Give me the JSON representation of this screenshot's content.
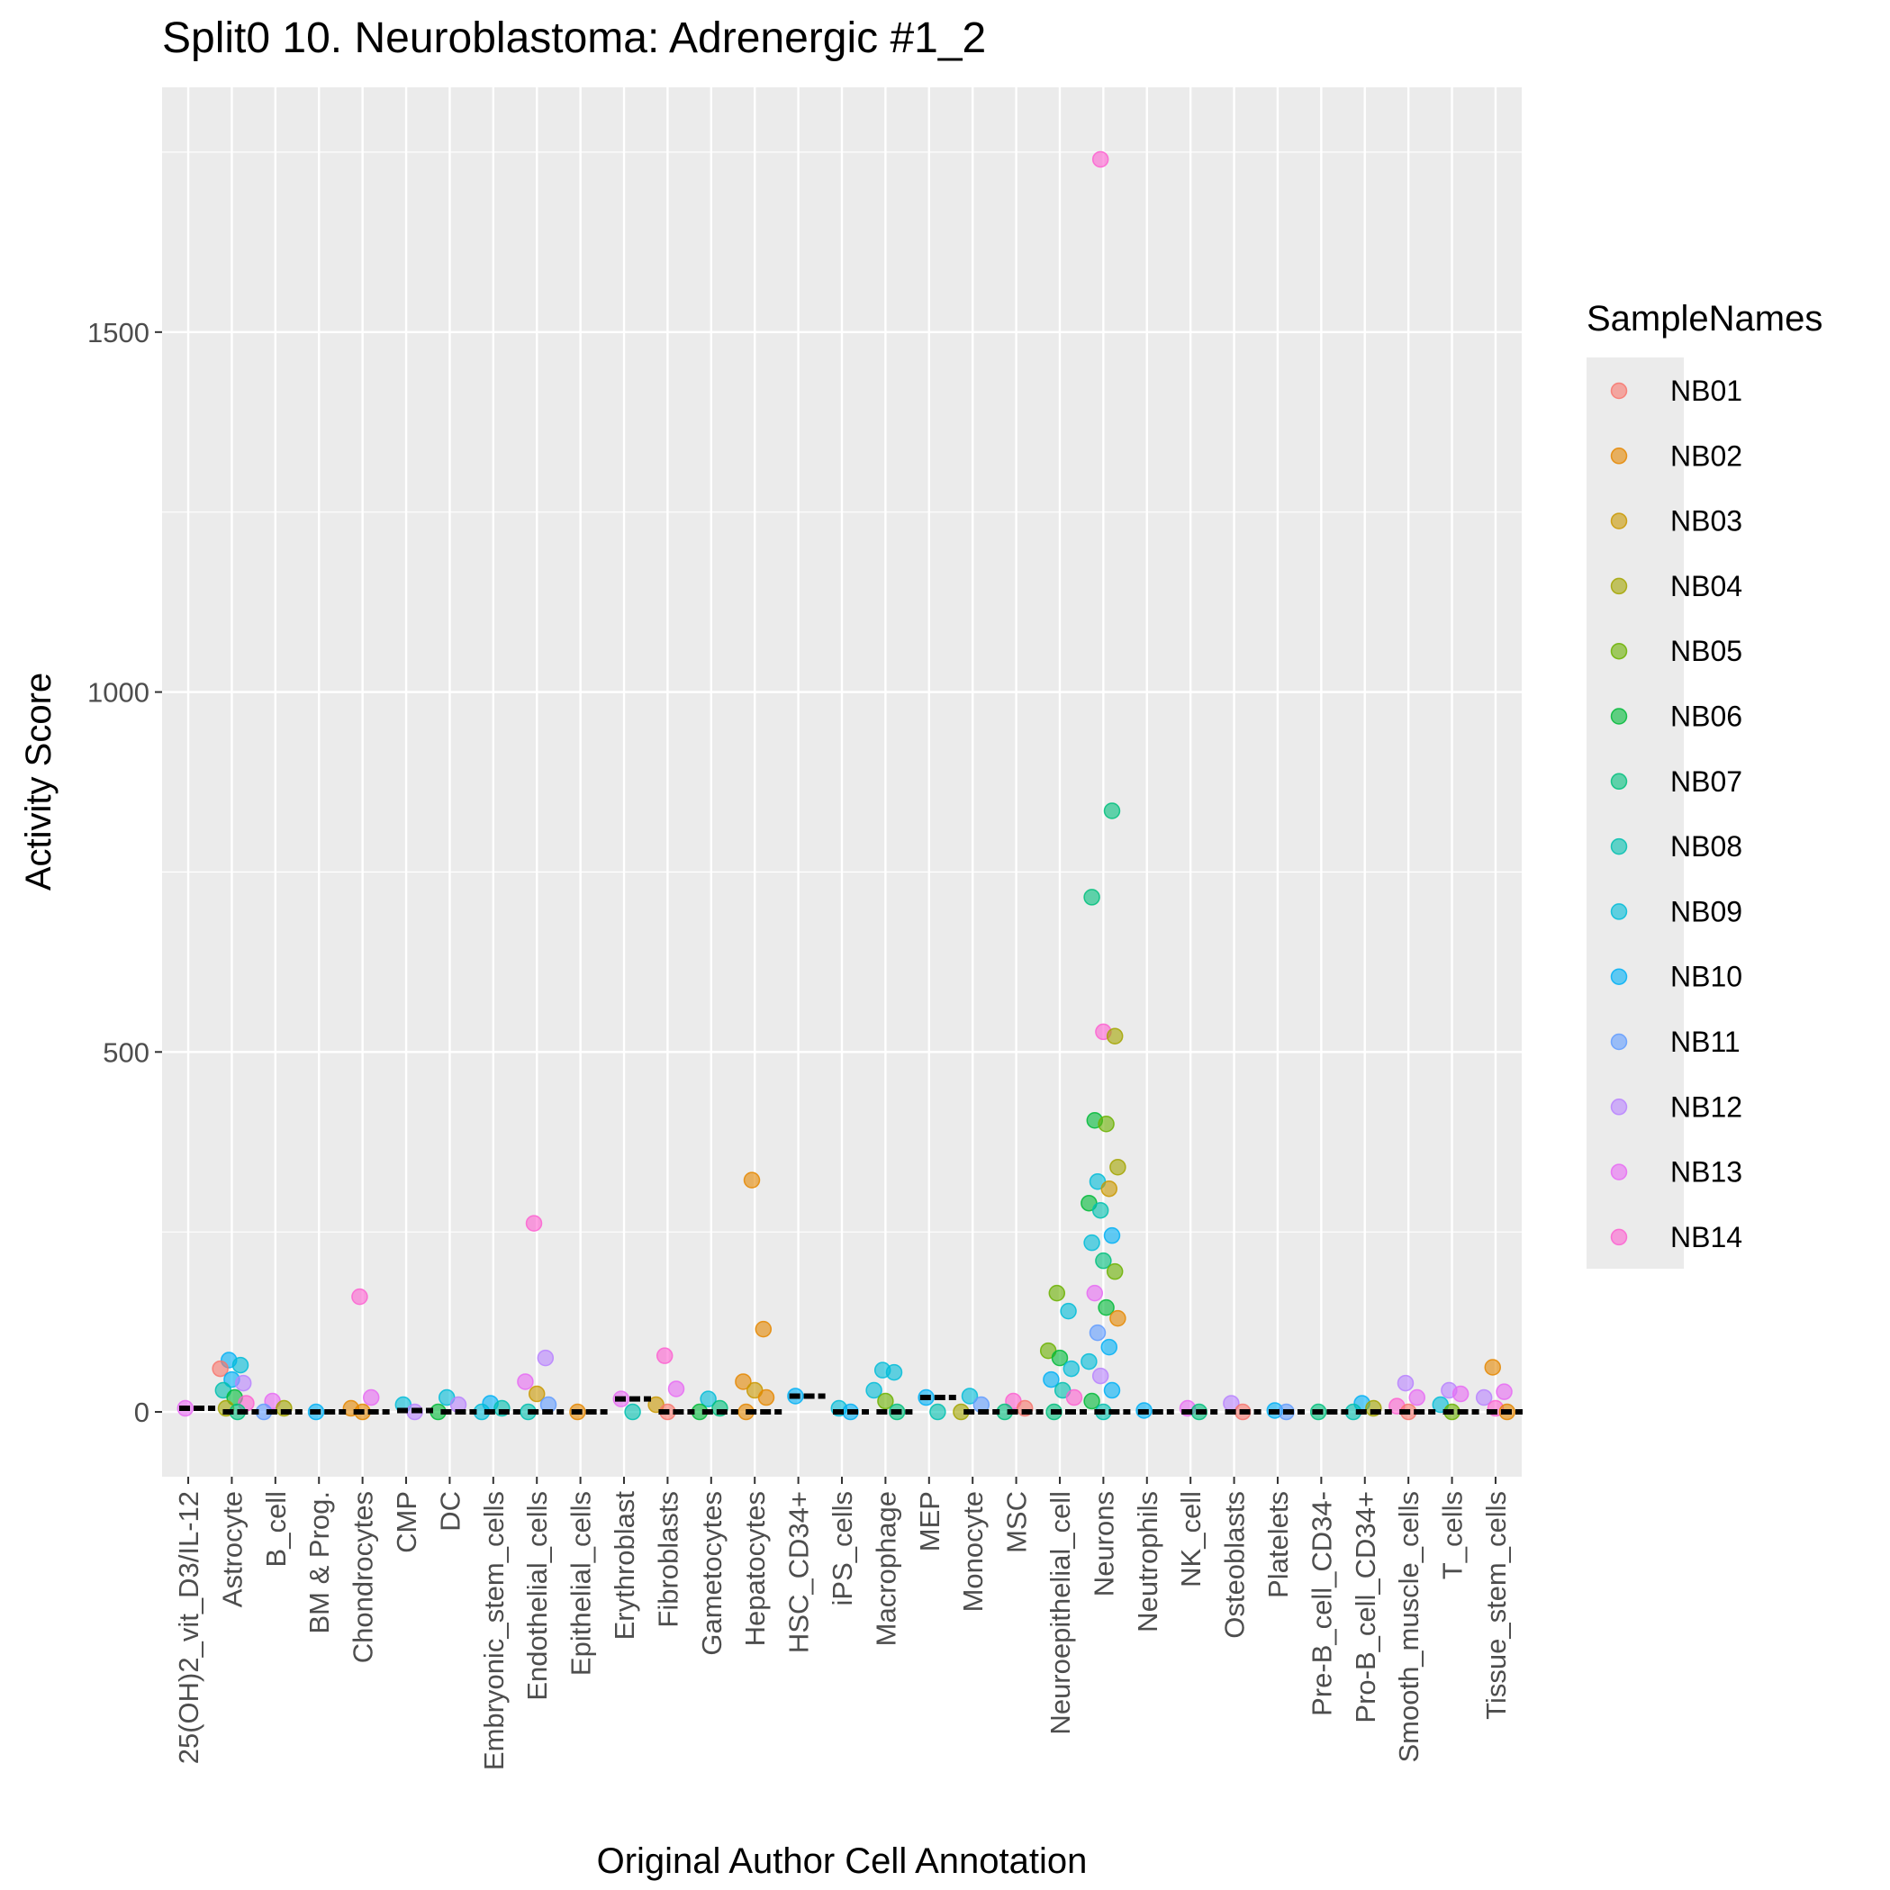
{
  "chart_data": {
    "type": "scatter",
    "title": "Split0 10. Neuroblastoma: Adrenergic #1_2",
    "xlabel": "Original Author Cell Annotation",
    "ylabel": "Activity Score",
    "ylim": [
      -90,
      1840
    ],
    "yticks": [
      0,
      500,
      1000,
      1500
    ],
    "grid": true,
    "legend": {
      "title": "SampleNames",
      "position": "right"
    },
    "categories": [
      "25(OH)2_vit_D3/IL-12",
      "Astrocyte",
      "B_cell",
      "BM & Prog.",
      "Chondrocytes",
      "CMP",
      "DC",
      "Embryonic_stem_cells",
      "Endothelial_cells",
      "Epithelial_cells",
      "Erythroblast",
      "Fibroblasts",
      "Gametocytes",
      "Hepatocytes",
      "HSC_CD34+",
      "iPS_cells",
      "Macrophage",
      "MEP",
      "Monocyte",
      "MSC",
      "Neuroepithelial_cell",
      "Neurons",
      "Neutrophils",
      "NK_cell",
      "Osteoblasts",
      "Platelets",
      "Pre-B_cell_CD34-",
      "Pro-B_cell_CD34+",
      "Smooth_muscle_cells",
      "T_cells",
      "Tissue_stem_cells"
    ],
    "series": [
      {
        "name": "NB01",
        "color": "#F8766D"
      },
      {
        "name": "NB02",
        "color": "#E58700"
      },
      {
        "name": "NB03",
        "color": "#C99800"
      },
      {
        "name": "NB04",
        "color": "#A3A500"
      },
      {
        "name": "NB05",
        "color": "#6BB100"
      },
      {
        "name": "NB06",
        "color": "#00BA38"
      },
      {
        "name": "NB07",
        "color": "#00BF7D"
      },
      {
        "name": "NB08",
        "color": "#00C0AF"
      },
      {
        "name": "NB09",
        "color": "#00BCD8"
      },
      {
        "name": "NB10",
        "color": "#00B0F6"
      },
      {
        "name": "NB11",
        "color": "#619CFF"
      },
      {
        "name": "NB12",
        "color": "#B983FF"
      },
      {
        "name": "NB13",
        "color": "#E76BF3"
      },
      {
        "name": "NB14",
        "color": "#FD61D1"
      }
    ],
    "points": [
      {
        "category": "25(OH)2_vit_D3/IL-12",
        "series": "NB13",
        "y": 5
      },
      {
        "category": "Astrocyte",
        "series": "NB10",
        "y": 72
      },
      {
        "category": "Astrocyte",
        "series": "NB09",
        "y": 65
      },
      {
        "category": "Astrocyte",
        "series": "NB01",
        "y": 60
      },
      {
        "category": "Astrocyte",
        "series": "NB10",
        "y": 45
      },
      {
        "category": "Astrocyte",
        "series": "NB12",
        "y": 40
      },
      {
        "category": "Astrocyte",
        "series": "NB08",
        "y": 30
      },
      {
        "category": "Astrocyte",
        "series": "NB06",
        "y": 20
      },
      {
        "category": "Astrocyte",
        "series": "NB14",
        "y": 12
      },
      {
        "category": "Astrocyte",
        "series": "NB04",
        "y": 5
      },
      {
        "category": "Astrocyte",
        "series": "NB07",
        "y": 0
      },
      {
        "category": "B_cell",
        "series": "NB13",
        "y": 15
      },
      {
        "category": "B_cell",
        "series": "NB04",
        "y": 5
      },
      {
        "category": "B_cell",
        "series": "NB11",
        "y": 0
      },
      {
        "category": "BM & Prog.",
        "series": "NB10",
        "y": 0
      },
      {
        "category": "Chondrocytes",
        "series": "NB14",
        "y": 160
      },
      {
        "category": "Chondrocytes",
        "series": "NB13",
        "y": 20
      },
      {
        "category": "Chondrocytes",
        "series": "NB02",
        "y": 5
      },
      {
        "category": "Chondrocytes",
        "series": "NB02",
        "y": 0
      },
      {
        "category": "CMP",
        "series": "NB09",
        "y": 10
      },
      {
        "category": "CMP",
        "series": "NB12",
        "y": 0
      },
      {
        "category": "DC",
        "series": "NB09",
        "y": 20
      },
      {
        "category": "DC",
        "series": "NB12",
        "y": 10
      },
      {
        "category": "DC",
        "series": "NB06",
        "y": 0
      },
      {
        "category": "Embryonic_stem_cells",
        "series": "NB10",
        "y": 12
      },
      {
        "category": "Embryonic_stem_cells",
        "series": "NB08",
        "y": 5
      },
      {
        "category": "Embryonic_stem_cells",
        "series": "NB09",
        "y": 0
      },
      {
        "category": "Endothelial_cells",
        "series": "NB14",
        "y": 262
      },
      {
        "category": "Endothelial_cells",
        "series": "NB12",
        "y": 75
      },
      {
        "category": "Endothelial_cells",
        "series": "NB13",
        "y": 42
      },
      {
        "category": "Endothelial_cells",
        "series": "NB03",
        "y": 25
      },
      {
        "category": "Endothelial_cells",
        "series": "NB11",
        "y": 10
      },
      {
        "category": "Endothelial_cells",
        "series": "NB08",
        "y": 0
      },
      {
        "category": "Epithelial_cells",
        "series": "NB02",
        "y": 0
      },
      {
        "category": "Erythroblast",
        "series": "NB13",
        "y": 18
      },
      {
        "category": "Erythroblast",
        "series": "NB08",
        "y": 0
      },
      {
        "category": "Fibroblasts",
        "series": "NB14",
        "y": 78
      },
      {
        "category": "Fibroblasts",
        "series": "NB13",
        "y": 32
      },
      {
        "category": "Fibroblasts",
        "series": "NB03",
        "y": 10
      },
      {
        "category": "Fibroblasts",
        "series": "NB01",
        "y": 0
      },
      {
        "category": "Gametocytes",
        "series": "NB09",
        "y": 18
      },
      {
        "category": "Gametocytes",
        "series": "NB07",
        "y": 5
      },
      {
        "category": "Gametocytes",
        "series": "NB06",
        "y": 0
      },
      {
        "category": "Hepatocytes",
        "series": "NB02",
        "y": 322
      },
      {
        "category": "Hepatocytes",
        "series": "NB02",
        "y": 115
      },
      {
        "category": "Hepatocytes",
        "series": "NB02",
        "y": 42
      },
      {
        "category": "Hepatocytes",
        "series": "NB03",
        "y": 30
      },
      {
        "category": "Hepatocytes",
        "series": "NB02",
        "y": 20
      },
      {
        "category": "Hepatocytes",
        "series": "NB02",
        "y": 0
      },
      {
        "category": "HSC_CD34+",
        "series": "NB10",
        "y": 22
      },
      {
        "category": "iPS_cells",
        "series": "NB09",
        "y": 5
      },
      {
        "category": "iPS_cells",
        "series": "NB10",
        "y": 0
      },
      {
        "category": "Macrophage",
        "series": "NB09",
        "y": 58
      },
      {
        "category": "Macrophage",
        "series": "NB09",
        "y": 55
      },
      {
        "category": "Macrophage",
        "series": "NB09",
        "y": 30
      },
      {
        "category": "Macrophage",
        "series": "NB05",
        "y": 15
      },
      {
        "category": "Macrophage",
        "series": "NB07",
        "y": 0
      },
      {
        "category": "MEP",
        "series": "NB10",
        "y": 20
      },
      {
        "category": "MEP",
        "series": "NB08",
        "y": 0
      },
      {
        "category": "Monocyte",
        "series": "NB09",
        "y": 22
      },
      {
        "category": "Monocyte",
        "series": "NB11",
        "y": 10
      },
      {
        "category": "Monocyte",
        "series": "NB04",
        "y": 0
      },
      {
        "category": "MSC",
        "series": "NB14",
        "y": 15
      },
      {
        "category": "MSC",
        "series": "NB01",
        "y": 5
      },
      {
        "category": "MSC",
        "series": "NB07",
        "y": 0
      },
      {
        "category": "Neuroepithelial_cell",
        "series": "NB05",
        "y": 165
      },
      {
        "category": "Neuroepithelial_cell",
        "series": "NB09",
        "y": 140
      },
      {
        "category": "Neuroepithelial_cell",
        "series": "NB05",
        "y": 85
      },
      {
        "category": "Neuroepithelial_cell",
        "series": "NB06",
        "y": 75
      },
      {
        "category": "Neuroepithelial_cell",
        "series": "NB09",
        "y": 60
      },
      {
        "category": "Neuroepithelial_cell",
        "series": "NB10",
        "y": 45
      },
      {
        "category": "Neuroepithelial_cell",
        "series": "NB08",
        "y": 30
      },
      {
        "category": "Neuroepithelial_cell",
        "series": "NB14",
        "y": 20
      },
      {
        "category": "Neuroepithelial_cell",
        "series": "NB07",
        "y": 0
      },
      {
        "category": "Neurons",
        "series": "NB14",
        "y": 1740
      },
      {
        "category": "Neurons",
        "series": "NB07",
        "y": 835
      },
      {
        "category": "Neurons",
        "series": "NB07",
        "y": 715
      },
      {
        "category": "Neurons",
        "series": "NB14",
        "y": 528
      },
      {
        "category": "Neurons",
        "series": "NB04",
        "y": 522
      },
      {
        "category": "Neurons",
        "series": "NB06",
        "y": 405
      },
      {
        "category": "Neurons",
        "series": "NB05",
        "y": 400
      },
      {
        "category": "Neurons",
        "series": "NB04",
        "y": 340
      },
      {
        "category": "Neurons",
        "series": "NB09",
        "y": 320
      },
      {
        "category": "Neurons",
        "series": "NB03",
        "y": 310
      },
      {
        "category": "Neurons",
        "series": "NB06",
        "y": 290
      },
      {
        "category": "Neurons",
        "series": "NB08",
        "y": 280
      },
      {
        "category": "Neurons",
        "series": "NB10",
        "y": 245
      },
      {
        "category": "Neurons",
        "series": "NB09",
        "y": 235
      },
      {
        "category": "Neurons",
        "series": "NB07",
        "y": 210
      },
      {
        "category": "Neurons",
        "series": "NB05",
        "y": 195
      },
      {
        "category": "Neurons",
        "series": "NB13",
        "y": 165
      },
      {
        "category": "Neurons",
        "series": "NB06",
        "y": 145
      },
      {
        "category": "Neurons",
        "series": "NB02",
        "y": 130
      },
      {
        "category": "Neurons",
        "series": "NB11",
        "y": 110
      },
      {
        "category": "Neurons",
        "series": "NB10",
        "y": 90
      },
      {
        "category": "Neurons",
        "series": "NB09",
        "y": 70
      },
      {
        "category": "Neurons",
        "series": "NB12",
        "y": 50
      },
      {
        "category": "Neurons",
        "series": "NB10",
        "y": 30
      },
      {
        "category": "Neurons",
        "series": "NB06",
        "y": 15
      },
      {
        "category": "Neurons",
        "series": "NB08",
        "y": 0
      },
      {
        "category": "Neutrophils",
        "series": "NB10",
        "y": 2
      },
      {
        "category": "NK_cell",
        "series": "NB13",
        "y": 5
      },
      {
        "category": "NK_cell",
        "series": "NB07",
        "y": 0
      },
      {
        "category": "Osteoblasts",
        "series": "NB12",
        "y": 12
      },
      {
        "category": "Osteoblasts",
        "series": "NB01",
        "y": 0
      },
      {
        "category": "Platelets",
        "series": "NB10",
        "y": 2
      },
      {
        "category": "Platelets",
        "series": "NB11",
        "y": 0
      },
      {
        "category": "Pre-B_cell_CD34-",
        "series": "NB07",
        "y": 0
      },
      {
        "category": "Pro-B_cell_CD34+",
        "series": "NB10",
        "y": 12
      },
      {
        "category": "Pro-B_cell_CD34+",
        "series": "NB04",
        "y": 5
      },
      {
        "category": "Pro-B_cell_CD34+",
        "series": "NB08",
        "y": 0
      },
      {
        "category": "Smooth_muscle_cells",
        "series": "NB12",
        "y": 40
      },
      {
        "category": "Smooth_muscle_cells",
        "series": "NB13",
        "y": 20
      },
      {
        "category": "Smooth_muscle_cells",
        "series": "NB14",
        "y": 8
      },
      {
        "category": "Smooth_muscle_cells",
        "series": "NB01",
        "y": 0
      },
      {
        "category": "T_cells",
        "series": "NB12",
        "y": 30
      },
      {
        "category": "T_cells",
        "series": "NB13",
        "y": 25
      },
      {
        "category": "T_cells",
        "series": "NB09",
        "y": 10
      },
      {
        "category": "T_cells",
        "series": "NB05",
        "y": 0
      },
      {
        "category": "Tissue_stem_cells",
        "series": "NB02",
        "y": 62
      },
      {
        "category": "Tissue_stem_cells",
        "series": "NB13",
        "y": 28
      },
      {
        "category": "Tissue_stem_cells",
        "series": "NB12",
        "y": 20
      },
      {
        "category": "Tissue_stem_cells",
        "series": "NB14",
        "y": 5
      },
      {
        "category": "Tissue_stem_cells",
        "series": "NB02",
        "y": 0
      }
    ],
    "medians": [
      {
        "category": "25(OH)2_vit_D3/IL-12",
        "y": 5
      },
      {
        "category": "Astrocyte",
        "y": 0
      },
      {
        "category": "B_cell",
        "y": 0
      },
      {
        "category": "BM & Prog.",
        "y": 0
      },
      {
        "category": "Chondrocytes",
        "y": 0
      },
      {
        "category": "CMP",
        "y": 2
      },
      {
        "category": "DC",
        "y": 0
      },
      {
        "category": "Embryonic_stem_cells",
        "y": 0
      },
      {
        "category": "Endothelial_cells",
        "y": 0
      },
      {
        "category": "Epithelial_cells",
        "y": 0
      },
      {
        "category": "Erythroblast",
        "y": 18
      },
      {
        "category": "Fibroblasts",
        "y": 0
      },
      {
        "category": "Gametocytes",
        "y": 0
      },
      {
        "category": "Hepatocytes",
        "y": 0
      },
      {
        "category": "HSC_CD34+",
        "y": 22
      },
      {
        "category": "iPS_cells",
        "y": 0
      },
      {
        "category": "Macrophage",
        "y": 0
      },
      {
        "category": "MEP",
        "y": 20
      },
      {
        "category": "Monocyte",
        "y": 0
      },
      {
        "category": "MSC",
        "y": 0
      },
      {
        "category": "Neuroepithelial_cell",
        "y": 0
      },
      {
        "category": "Neurons",
        "y": 0
      },
      {
        "category": "Neutrophils",
        "y": 0
      },
      {
        "category": "NK_cell",
        "y": 0
      },
      {
        "category": "Osteoblasts",
        "y": 0
      },
      {
        "category": "Platelets",
        "y": 0
      },
      {
        "category": "Pre-B_cell_CD34-",
        "y": 0
      },
      {
        "category": "Pro-B_cell_CD34+",
        "y": 0
      },
      {
        "category": "Smooth_muscle_cells",
        "y": 0
      },
      {
        "category": "T_cells",
        "y": 0
      },
      {
        "category": "Tissue_stem_cells",
        "y": 0
      }
    ]
  }
}
